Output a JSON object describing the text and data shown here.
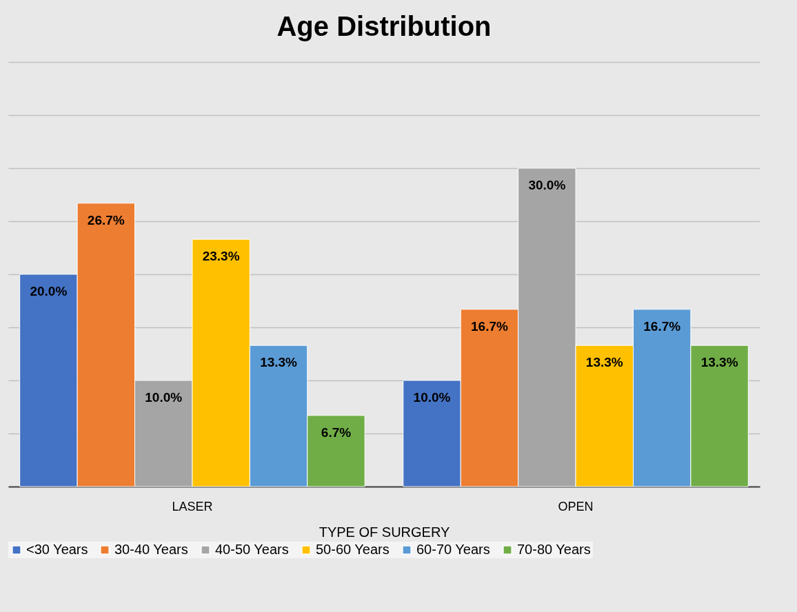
{
  "chart_data": {
    "type": "bar",
    "title": "Age Distribution",
    "xlabel": "TYPE OF SURGERY",
    "categories": [
      "LASER",
      "OPEN"
    ],
    "series": [
      {
        "name": "<30 Years",
        "color": "#4472c4",
        "values": [
          20.0,
          10.0
        ],
        "value_labels": [
          "20.0%",
          "10.0%"
        ]
      },
      {
        "name": "30-40 Years",
        "color": "#ed7d31",
        "values": [
          26.7,
          16.7
        ],
        "value_labels": [
          "26.7%",
          "16.7%"
        ]
      },
      {
        "name": "40-50 Years",
        "color": "#a5a5a5",
        "values": [
          10.0,
          30.0
        ],
        "value_labels": [
          "10.0%",
          "30.0%"
        ]
      },
      {
        "name": "50-60 Years",
        "color": "#ffc000",
        "values": [
          23.3,
          13.3
        ],
        "value_labels": [
          "23.3%",
          "13.3%"
        ]
      },
      {
        "name": "60-70 Years",
        "color": "#5b9bd5",
        "values": [
          13.3,
          16.7
        ],
        "value_labels": [
          "13.3%",
          "16.7%"
        ]
      },
      {
        "name": "70-80 Years",
        "color": "#70ad47",
        "values": [
          6.7,
          13.3
        ],
        "value_labels": [
          "6.7%",
          "13.3%"
        ]
      }
    ],
    "ylim": [
      0,
      40
    ],
    "yticks": [
      0,
      5,
      10,
      15,
      20,
      25,
      30,
      35,
      40
    ],
    "tick_labels": "x",
    "grid": "y",
    "legend": "bottom"
  }
}
